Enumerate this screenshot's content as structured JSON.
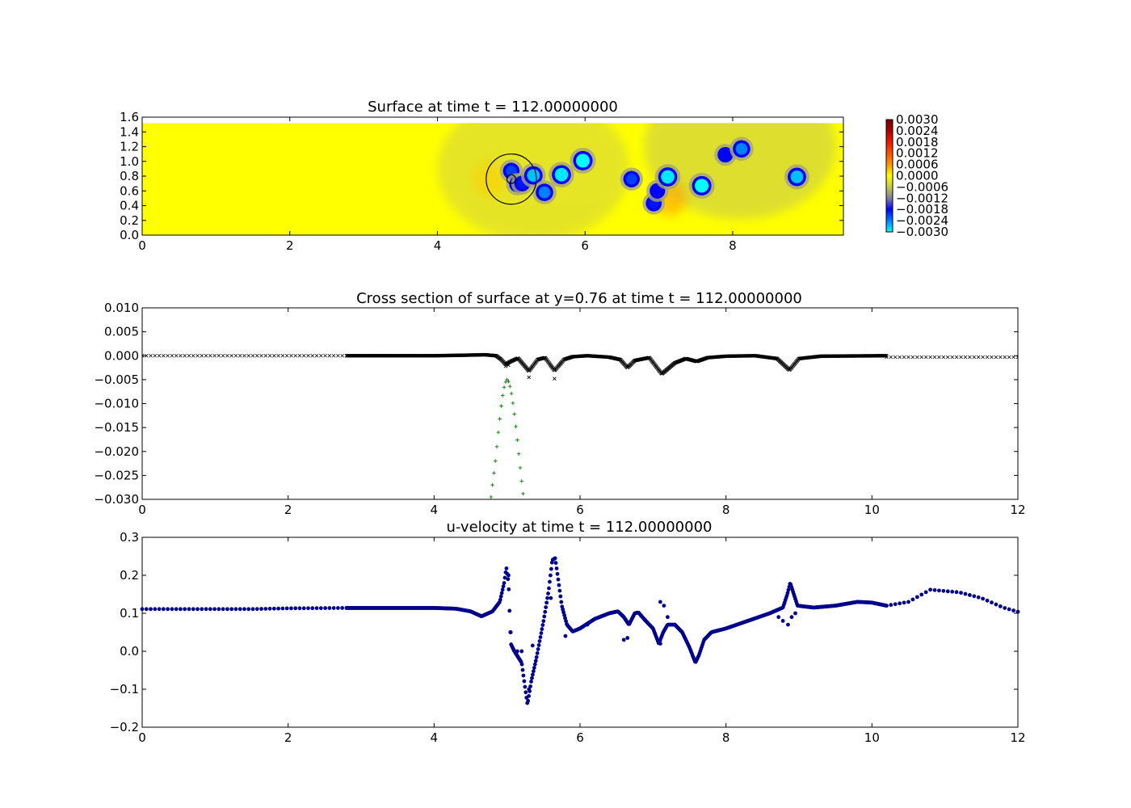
{
  "colors": {
    "background": "#ffffff",
    "field_base": "#ffff00",
    "cross_section_points": "#000000",
    "gaussian_points": "#008000",
    "velocity_points": "#00008b",
    "circle": "#000000"
  },
  "chart_data": [
    {
      "id": "surface",
      "type": "heatmap",
      "title": "Surface at time t =   112.00000000",
      "xlabel": "",
      "ylabel": "",
      "xlim": [
        0,
        9.5
      ],
      "ylim": [
        0,
        1.6
      ],
      "xticks": [
        0,
        2,
        4,
        6,
        8
      ],
      "xtick_labels": [
        "0",
        "2",
        "4",
        "6",
        "8"
      ],
      "yticks": [
        0.0,
        0.2,
        0.4,
        0.6,
        0.8,
        1.0,
        1.2,
        1.4,
        1.6
      ],
      "ytick_labels": [
        "0.0",
        "0.2",
        "0.4",
        "0.6",
        "0.8",
        "1.0",
        "1.2",
        "1.4",
        "1.6"
      ],
      "grid": false,
      "domain_extent": {
        "x": [
          0,
          9.5
        ],
        "y": [
          0,
          1.52
        ]
      },
      "background_value": 0.0,
      "colorbar": {
        "range": [
          -0.003,
          0.003
        ],
        "ticks": [
          0.003,
          0.0024,
          0.0018,
          0.0012,
          0.0006,
          0.0,
          -0.0006,
          -0.0012,
          -0.0018,
          -0.0024,
          -0.003
        ],
        "tick_labels": [
          "0.0030",
          "0.0024",
          "0.0018",
          "0.0012",
          "0.0006",
          "0.0000",
          "−0.0006",
          "−0.0012",
          "−0.0018",
          "−0.0024",
          "−0.0030"
        ],
        "stops": [
          {
            "value": -0.003,
            "color": "#00ffff"
          },
          {
            "value": -0.0024,
            "color": "#0080ff"
          },
          {
            "value": -0.0018,
            "color": "#0000ff"
          },
          {
            "value": -0.0012,
            "color": "#8080a0"
          },
          {
            "value": -0.0006,
            "color": "#c8c850"
          },
          {
            "value": 0.0,
            "color": "#ffff00"
          },
          {
            "value": 0.0006,
            "color": "#ff9900"
          },
          {
            "value": 0.0012,
            "color": "#ff5000"
          },
          {
            "value": 0.0018,
            "color": "#ee1a00"
          },
          {
            "value": 0.0024,
            "color": "#b00000"
          },
          {
            "value": 0.003,
            "color": "#700000"
          }
        ]
      },
      "depressions": [
        {
          "x": 5.0,
          "y": 0.87,
          "value": -0.0021
        },
        {
          "x": 5.08,
          "y": 0.69,
          "value": -0.0019
        },
        {
          "x": 5.15,
          "y": 0.7,
          "value": -0.0019
        },
        {
          "x": 5.3,
          "y": 0.81,
          "value": -0.0027
        },
        {
          "x": 5.45,
          "y": 0.58,
          "value": -0.0024
        },
        {
          "x": 5.68,
          "y": 0.82,
          "value": -0.0029
        },
        {
          "x": 5.97,
          "y": 1.01,
          "value": -0.003
        },
        {
          "x": 6.63,
          "y": 0.76,
          "value": -0.0021
        },
        {
          "x": 6.93,
          "y": 0.43,
          "value": -0.0019
        },
        {
          "x": 6.98,
          "y": 0.6,
          "value": -0.0018
        },
        {
          "x": 7.12,
          "y": 0.79,
          "value": -0.0029
        },
        {
          "x": 7.58,
          "y": 0.67,
          "value": -0.003
        },
        {
          "x": 7.9,
          "y": 1.09,
          "value": -0.0018
        },
        {
          "x": 8.12,
          "y": 1.17,
          "value": -0.0024
        },
        {
          "x": 8.87,
          "y": 0.79,
          "value": -0.0027
        }
      ],
      "elevations": [
        {
          "x": 7.15,
          "y": 0.5,
          "value": 0.0006
        },
        {
          "x": 4.7,
          "y": 0.75,
          "value": 0.0003
        }
      ],
      "shaded_regions": [
        {
          "x": 5.3,
          "y": 0.9,
          "value": -0.0004
        },
        {
          "x": 8.1,
          "y": 1.2,
          "value": -0.0005
        }
      ],
      "circles": [
        {
          "x": 5.0,
          "y": 0.76,
          "r_data_x": 0.34
        },
        {
          "x": 5.0,
          "y": 0.76,
          "r_data_x": 0.06
        }
      ]
    },
    {
      "id": "cross-section",
      "type": "scatter",
      "title": "Cross section of surface at y=0.76 at time t =   112.00000000",
      "xlabel": "",
      "ylabel": "",
      "xlim": [
        0,
        12
      ],
      "ylim": [
        -0.03,
        0.01
      ],
      "xticks": [
        0,
        2,
        4,
        6,
        8,
        10,
        12
      ],
      "xtick_labels": [
        "0",
        "2",
        "4",
        "6",
        "8",
        "10",
        "12"
      ],
      "yticks": [
        0.01,
        0.005,
        0.0,
        -0.005,
        -0.01,
        -0.015,
        -0.02,
        -0.025,
        -0.03
      ],
      "ytick_labels": [
        "0.010",
        "0.005",
        "0.000",
        "−0.005",
        "−0.010",
        "−0.015",
        "−0.020",
        "−0.025",
        "−0.030"
      ],
      "grid": false,
      "series": [
        {
          "marker": "x",
          "color": "#000000",
          "segments": [
            {
              "x_range": [
                0,
                2.8
              ],
              "count": 49,
              "y": 0.0
            },
            {
              "x_range": [
                2.8,
                10.2
              ],
              "count": 900,
              "y": 0.0
            },
            {
              "x_range": [
                10.2,
                12.0
              ],
              "count": 31,
              "y": -0.0003
            }
          ],
          "profile_points": [
            [
              2.8,
              0.0
            ],
            [
              4.0,
              0.0
            ],
            [
              4.4,
              0.0001
            ],
            [
              4.7,
              0.0002
            ],
            [
              4.85,
              0.0
            ],
            [
              4.92,
              -0.0008
            ],
            [
              4.98,
              -0.0018
            ],
            [
              5.05,
              -0.0012
            ],
            [
              5.15,
              -0.0005
            ],
            [
              5.3,
              -0.0032
            ],
            [
              5.42,
              -0.0008
            ],
            [
              5.52,
              -0.0004
            ],
            [
              5.65,
              -0.0031
            ],
            [
              5.78,
              -0.0008
            ],
            [
              5.9,
              -0.0002
            ],
            [
              6.1,
              0.0
            ],
            [
              6.4,
              -0.0003
            ],
            [
              6.55,
              -0.0008
            ],
            [
              6.65,
              -0.0025
            ],
            [
              6.75,
              -0.001
            ],
            [
              6.95,
              -0.0004
            ],
            [
              7.12,
              -0.0038
            ],
            [
              7.3,
              -0.0015
            ],
            [
              7.45,
              -0.0006
            ],
            [
              7.6,
              -0.0012
            ],
            [
              7.75,
              -0.0004
            ],
            [
              8.0,
              -0.0001
            ],
            [
              8.4,
              0.0
            ],
            [
              8.7,
              -0.0006
            ],
            [
              8.87,
              -0.003
            ],
            [
              9.0,
              -0.0006
            ],
            [
              9.3,
              -0.0001
            ],
            [
              10.2,
              0.0
            ]
          ],
          "outliers": [
            [
              5.3,
              -0.0045
            ],
            [
              5.65,
              -0.0048
            ],
            [
              4.98,
              -0.0022
            ],
            [
              5.02,
              -0.002
            ]
          ]
        },
        {
          "marker": "+",
          "color": "#008000",
          "peak": {
            "x": 5.0,
            "y": -0.005
          },
          "points": [
            [
              4.78,
              -0.0295
            ],
            [
              4.8,
              -0.027
            ],
            [
              4.82,
              -0.0245
            ],
            [
              4.84,
              -0.022
            ],
            [
              4.86,
              -0.019
            ],
            [
              4.88,
              -0.016
            ],
            [
              4.9,
              -0.0132
            ],
            [
              4.92,
              -0.0105
            ],
            [
              4.94,
              -0.0083
            ],
            [
              4.96,
              -0.0066
            ],
            [
              4.98,
              -0.0055
            ],
            [
              5.0,
              -0.005
            ],
            [
              5.02,
              -0.0054
            ],
            [
              5.04,
              -0.0064
            ],
            [
              5.06,
              -0.0079
            ],
            [
              5.08,
              -0.0099
            ],
            [
              5.1,
              -0.0122
            ],
            [
              5.12,
              -0.0148
            ],
            [
              5.14,
              -0.0176
            ],
            [
              5.16,
              -0.0205
            ],
            [
              5.18,
              -0.0234
            ],
            [
              5.2,
              -0.0262
            ],
            [
              5.22,
              -0.0288
            ]
          ]
        }
      ]
    },
    {
      "id": "u-velocity",
      "type": "scatter",
      "title": "u-velocity at time t =   112.00000000",
      "xlabel": "",
      "ylabel": "",
      "xlim": [
        0,
        12
      ],
      "ylim": [
        -0.2,
        0.3
      ],
      "xticks": [
        0,
        2,
        4,
        6,
        8,
        10,
        12
      ],
      "xtick_labels": [
        "0",
        "2",
        "4",
        "6",
        "8",
        "10",
        "12"
      ],
      "yticks": [
        0.3,
        0.2,
        0.1,
        0.0,
        -0.1,
        -0.2
      ],
      "ytick_labels": [
        "0.3",
        "0.2",
        "0.1",
        "0.0",
        "−0.1",
        "−0.2"
      ],
      "grid": false,
      "series": [
        {
          "marker": "o",
          "color": "#00008b",
          "coarse_left": {
            "x_range": [
              0,
              2.8
            ],
            "count": 49,
            "points": [
              [
                0,
                0.111
              ],
              [
                1.5,
                0.111
              ],
              [
                2.0,
                0.113
              ],
              [
                2.8,
                0.114
              ]
            ]
          },
          "dense": {
            "x_range": [
              2.8,
              10.2
            ],
            "count": 700,
            "points": [
              [
                2.8,
                0.114
              ],
              [
                4.0,
                0.114
              ],
              [
                4.3,
                0.112
              ],
              [
                4.5,
                0.105
              ],
              [
                4.65,
                0.092
              ],
              [
                4.8,
                0.105
              ],
              [
                4.9,
                0.13
              ],
              [
                4.96,
                0.18
              ],
              [
                4.99,
                0.22
              ],
              [
                5.02,
                0.18
              ],
              [
                5.05,
                0.02
              ],
              [
                5.1,
                0.0
              ],
              [
                5.2,
                -0.03
              ],
              [
                5.25,
                -0.1
              ],
              [
                5.28,
                -0.14
              ],
              [
                5.33,
                -0.08
              ],
              [
                5.4,
                -0.02
              ],
              [
                5.5,
                0.08
              ],
              [
                5.57,
                0.16
              ],
              [
                5.62,
                0.24
              ],
              [
                5.66,
                0.245
              ],
              [
                5.7,
                0.19
              ],
              [
                5.75,
                0.12
              ],
              [
                5.82,
                0.07
              ],
              [
                5.9,
                0.052
              ],
              [
                6.0,
                0.06
              ],
              [
                6.2,
                0.085
              ],
              [
                6.4,
                0.1
              ],
              [
                6.52,
                0.105
              ],
              [
                6.6,
                0.09
              ],
              [
                6.67,
                0.07
              ],
              [
                6.75,
                0.1
              ],
              [
                6.8,
                0.102
              ],
              [
                6.9,
                0.08
              ],
              [
                7.0,
                0.06
              ],
              [
                7.08,
                0.02
              ],
              [
                7.14,
                0.05
              ],
              [
                7.2,
                0.07
              ],
              [
                7.3,
                0.07
              ],
              [
                7.4,
                0.05
              ],
              [
                7.5,
                0.01
              ],
              [
                7.58,
                -0.03
              ],
              [
                7.63,
                -0.01
              ],
              [
                7.7,
                0.03
              ],
              [
                7.8,
                0.05
              ],
              [
                8.0,
                0.06
              ],
              [
                8.3,
                0.08
              ],
              [
                8.6,
                0.1
              ],
              [
                8.78,
                0.115
              ],
              [
                8.84,
                0.15
              ],
              [
                8.88,
                0.18
              ],
              [
                8.93,
                0.15
              ],
              [
                8.98,
                0.12
              ],
              [
                9.2,
                0.115
              ],
              [
                9.5,
                0.12
              ],
              [
                9.8,
                0.13
              ],
              [
                10.0,
                0.128
              ],
              [
                10.2,
                0.12
              ]
            ]
          },
          "coarse_right": {
            "x_range": [
              10.2,
              12.0
            ],
            "count": 31,
            "points": [
              [
                10.2,
                0.12
              ],
              [
                10.5,
                0.13
              ],
              [
                10.8,
                0.162
              ],
              [
                11.2,
                0.155
              ],
              [
                11.5,
                0.14
              ],
              [
                11.8,
                0.115
              ],
              [
                12.0,
                0.104
              ]
            ]
          },
          "scatter_outliers": [
            [
              5.02,
              0.2
            ],
            [
              5.05,
              0.05
            ],
            [
              5.14,
              0.0
            ],
            [
              5.2,
              0.0
            ],
            [
              5.3,
              -0.1
            ],
            [
              5.35,
              0.015
            ],
            [
              5.6,
              0.14
            ],
            [
              5.8,
              0.04
            ],
            [
              6.1,
              0.07
            ],
            [
              6.6,
              0.03
            ],
            [
              6.65,
              0.035
            ],
            [
              7.1,
              0.13
            ],
            [
              7.15,
              0.12
            ],
            [
              7.2,
              0.09
            ],
            [
              8.72,
              0.09
            ],
            [
              8.78,
              0.08
            ],
            [
              8.85,
              0.07
            ],
            [
              8.9,
              0.09
            ],
            [
              8.95,
              0.1
            ],
            [
              7.1,
              0.02
            ]
          ]
        }
      ]
    }
  ]
}
